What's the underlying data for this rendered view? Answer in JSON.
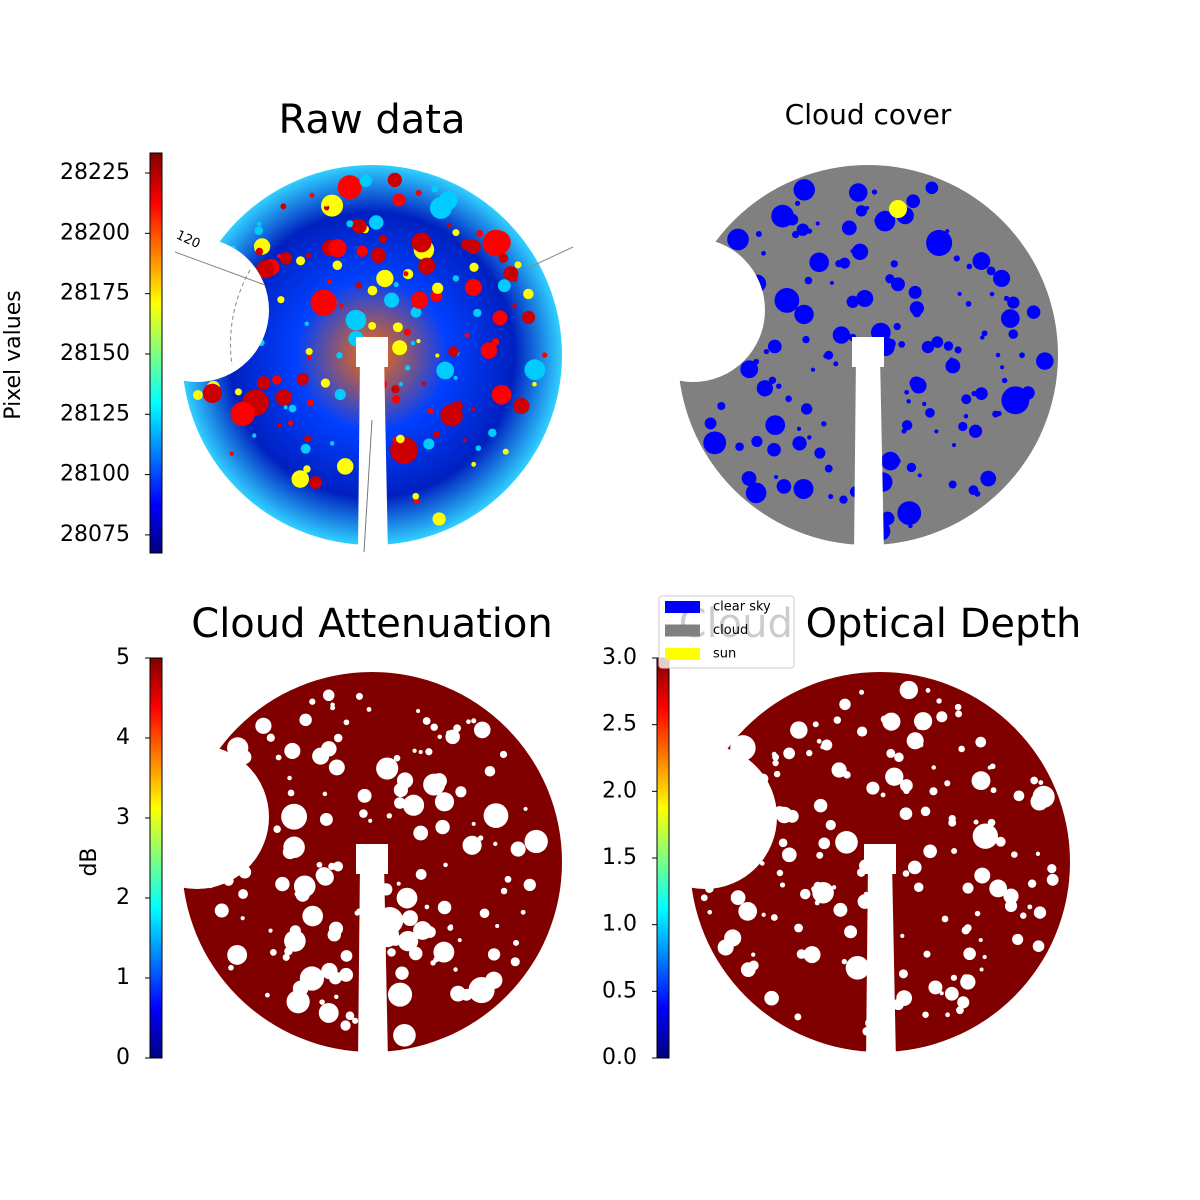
{
  "chart_data": [
    {
      "type": "image",
      "title": "Raw data",
      "cmap": "jet",
      "colorbar": {
        "label": "Pixel values",
        "lim": [
          28067.5,
          28233.3
        ],
        "ticks": [
          28075,
          28100,
          28125,
          28150,
          28175,
          28200,
          28225
        ]
      },
      "annotations": [
        "120"
      ]
    },
    {
      "type": "image",
      "title": "Cloud cover",
      "legend": [
        {
          "label": "clear sky",
          "color": "#0000ff"
        },
        {
          "label": "cloud",
          "color": "#808080"
        },
        {
          "label": "sun",
          "color": "#ffff00"
        }
      ]
    },
    {
      "type": "image",
      "title": "Cloud Attenuation",
      "cmap": "jet",
      "colorbar": {
        "label": "dB",
        "lim": [
          0,
          5
        ],
        "ticks": [
          0,
          1,
          2,
          3,
          4,
          5
        ]
      }
    },
    {
      "type": "image",
      "title": "Cloud Optical Depth",
      "cmap": "jet",
      "colorbar": {
        "lim": [
          0,
          3
        ],
        "ticks": [
          {
            "value": 0,
            "label": "0.0"
          },
          {
            "value": 0.5,
            "label": "0.5"
          },
          {
            "value": 1,
            "label": "1.0"
          },
          {
            "value": 1.5,
            "label": "1.5"
          },
          {
            "value": 2,
            "label": "2.0"
          },
          {
            "value": 2.5,
            "label": "2.5"
          },
          {
            "value": 3,
            "label": "3.0"
          }
        ]
      }
    }
  ]
}
